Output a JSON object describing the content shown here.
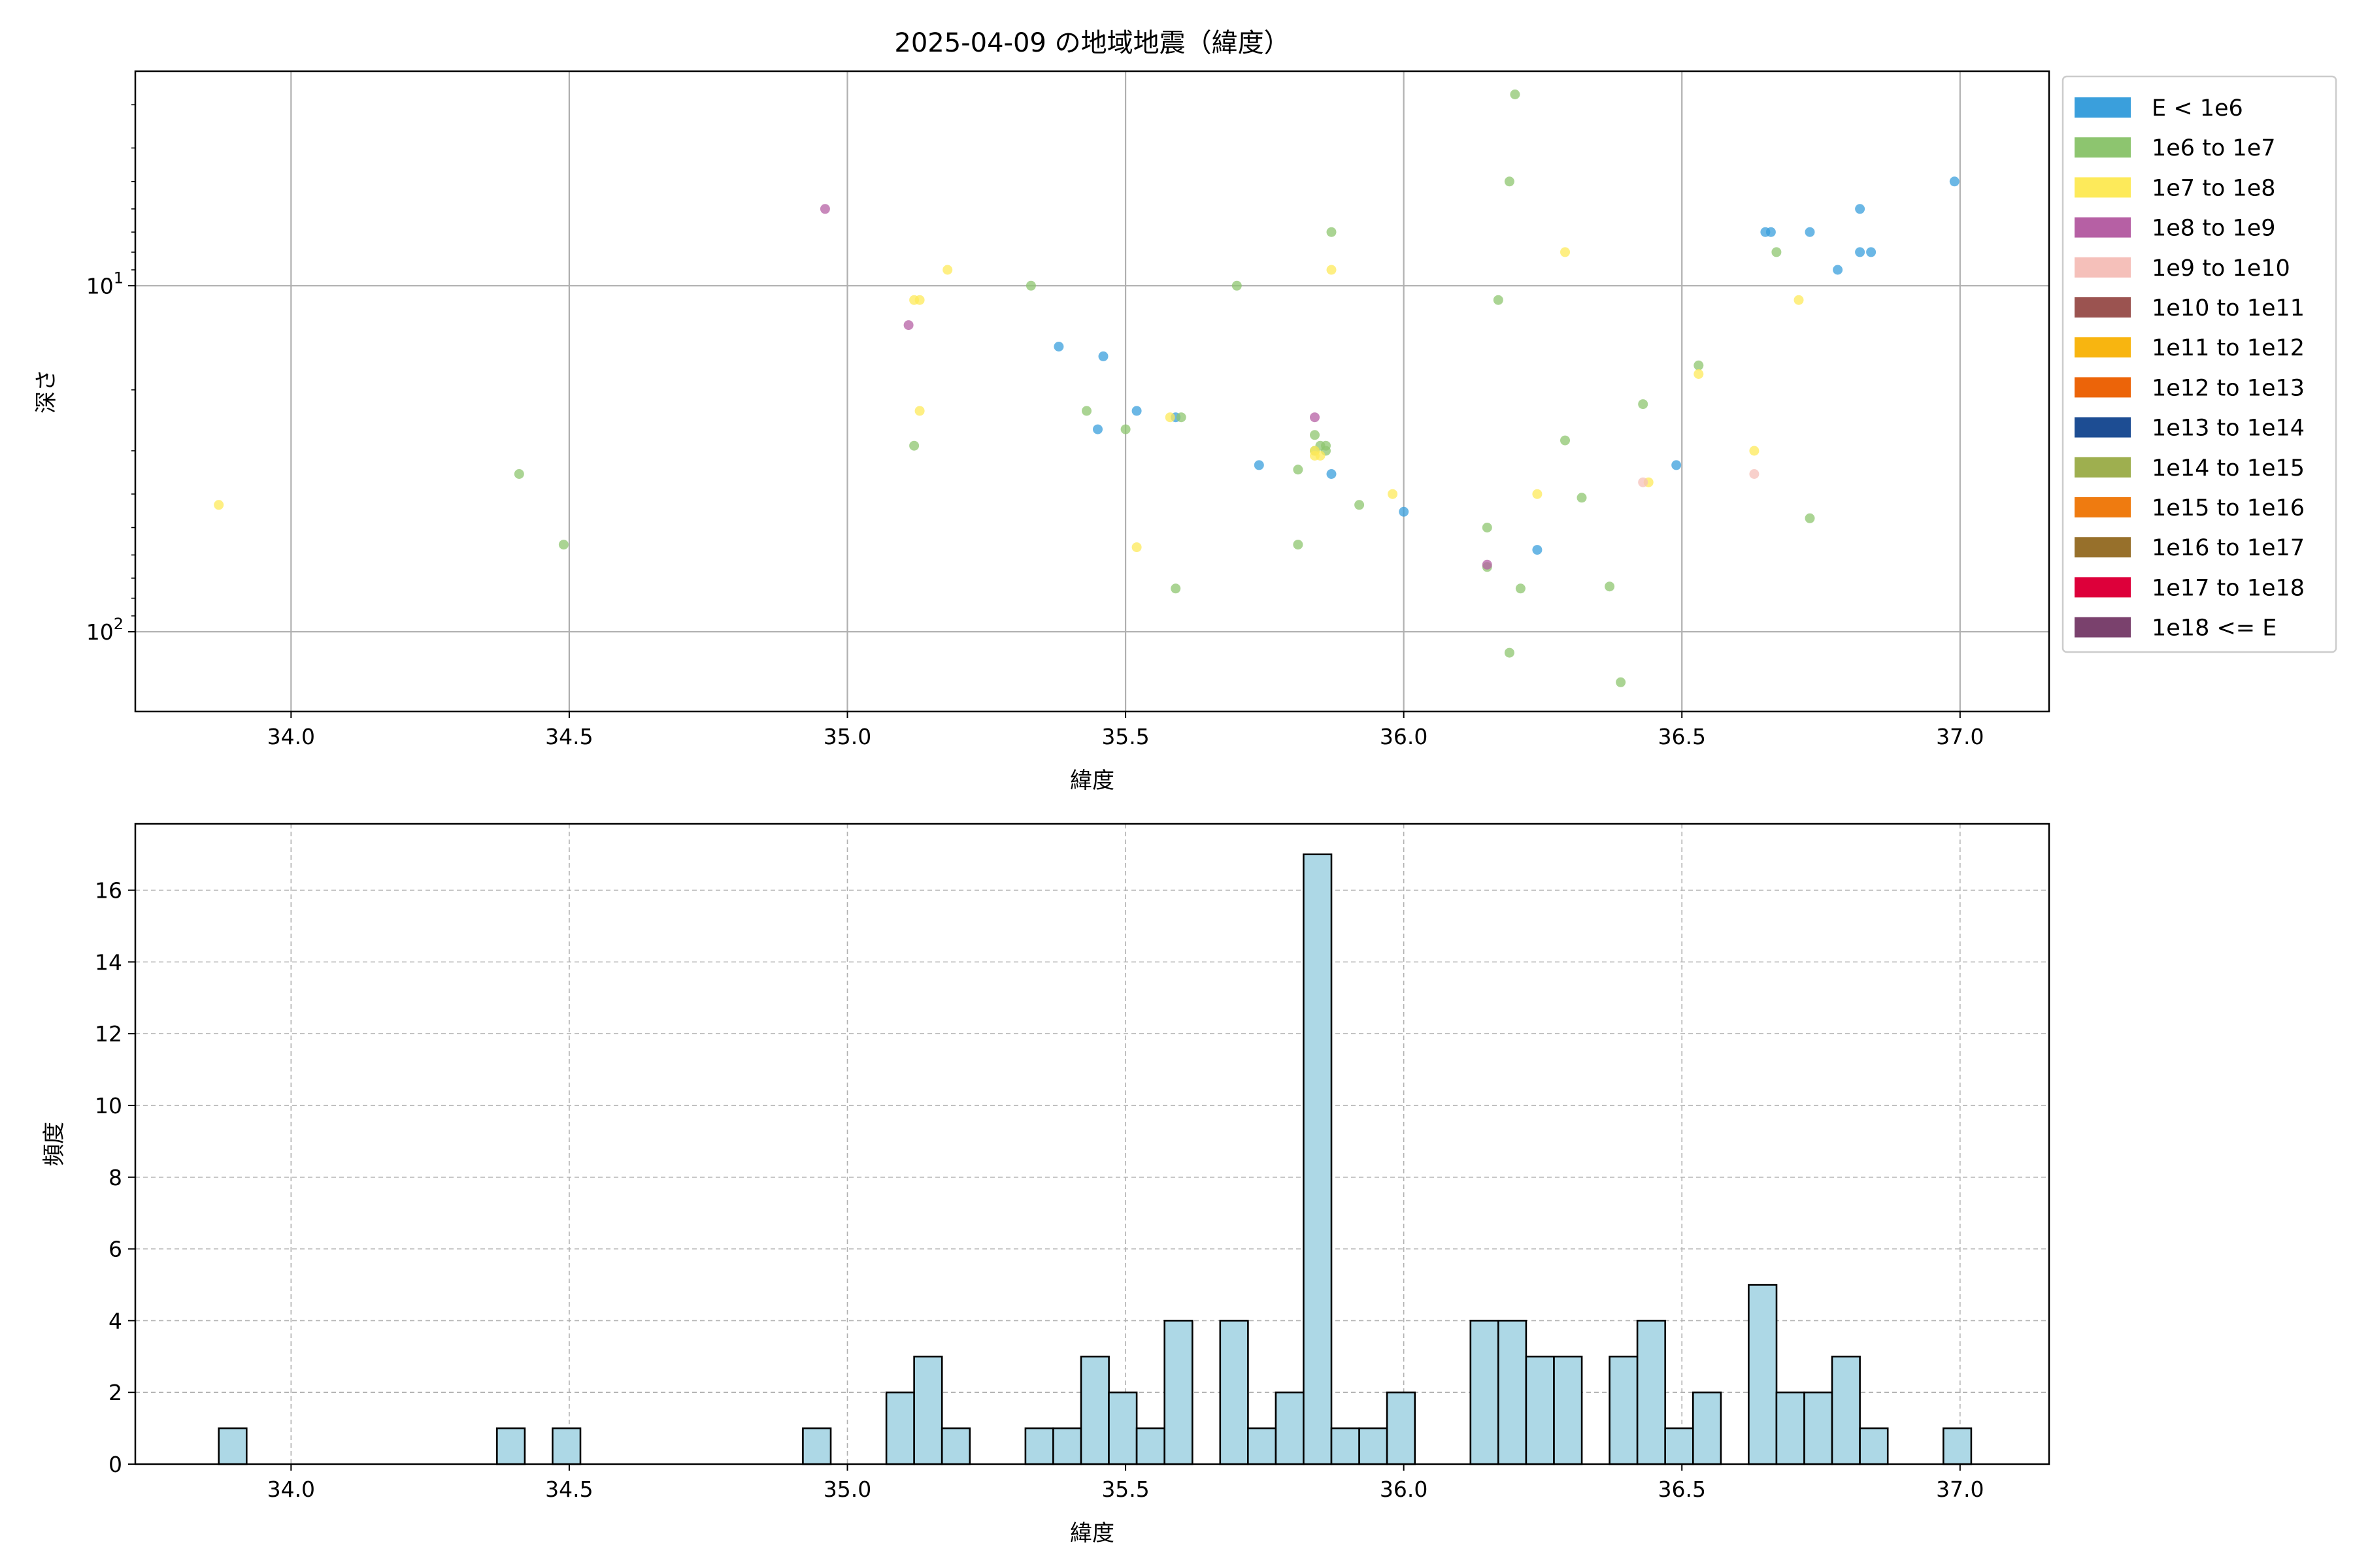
{
  "chart_data": [
    {
      "type": "scatter",
      "title": "2025-04-09 の地域地震（緯度）",
      "xlabel": "緯度",
      "ylabel": "深さ",
      "xlim": [
        33.72,
        37.16
      ],
      "ylim": [
        170,
        2.4
      ],
      "yscale": "log",
      "y_inverted": true,
      "xticks": [
        "34.0",
        "34.5",
        "35.0",
        "35.5",
        "36.0",
        "36.5",
        "37.0"
      ],
      "xtick_values": [
        34.0,
        34.5,
        35.0,
        35.5,
        36.0,
        36.5,
        37.0
      ],
      "ytick_labels": [
        {
          "base": "10",
          "exp": "1",
          "value": 10
        },
        {
          "base": "10",
          "exp": "2",
          "value": 100
        }
      ],
      "grid": true,
      "legend_position": "outside-right",
      "legend": [
        {
          "label": "E < 1e6",
          "color": "#3a9fdc"
        },
        {
          "label": "1e6 to 1e7",
          "color": "#8dc56f"
        },
        {
          "label": "1e7 to 1e8",
          "color": "#fdea5a"
        },
        {
          "label": "1e8 to 1e9",
          "color": "#b660a4"
        },
        {
          "label": "1e9 to 1e10",
          "color": "#f5c0ba"
        },
        {
          "label": "1e10 to 1e11",
          "color": "#9b5350"
        },
        {
          "label": "1e11 to 1e12",
          "color": "#f8b510"
        },
        {
          "label": "1e12 to 1e13",
          "color": "#ec6409"
        },
        {
          "label": "1e13 to 1e14",
          "color": "#1d4d93"
        },
        {
          "label": "1e14 to 1e15",
          "color": "#9eaf4f"
        },
        {
          "label": "1e15 to 1e16",
          "color": "#ef7b10"
        },
        {
          "label": "1e16 to 1e17",
          "color": "#97702b"
        },
        {
          "label": "1e17 to 1e18",
          "color": "#dd003a"
        },
        {
          "label": "1e18 <= E",
          "color": "#7a416d"
        }
      ],
      "series": [
        {
          "name": "E < 1e6",
          "color": "#3a9fdc",
          "points": [
            [
              35.38,
              15
            ],
            [
              35.46,
              16
            ],
            [
              35.45,
              26
            ],
            [
              35.52,
              23
            ],
            [
              35.59,
              24
            ],
            [
              35.74,
              33
            ],
            [
              35.87,
              35
            ],
            [
              36.0,
              45
            ],
            [
              36.24,
              58
            ],
            [
              36.49,
              33
            ],
            [
              36.65,
              7
            ],
            [
              36.66,
              7
            ],
            [
              36.73,
              7
            ],
            [
              36.78,
              9
            ],
            [
              36.82,
              6
            ],
            [
              36.82,
              8
            ],
            [
              36.84,
              8
            ],
            [
              36.99,
              5
            ]
          ]
        },
        {
          "name": "1e6 to 1e7",
          "color": "#8dc56f",
          "points": [
            [
              34.41,
              35
            ],
            [
              34.49,
              56
            ],
            [
              35.12,
              29
            ],
            [
              35.33,
              10
            ],
            [
              35.43,
              23
            ],
            [
              35.5,
              26
            ],
            [
              35.59,
              75
            ],
            [
              35.6,
              24
            ],
            [
              35.7,
              10
            ],
            [
              35.81,
              34
            ],
            [
              35.81,
              56
            ],
            [
              35.84,
              30
            ],
            [
              35.84,
              27
            ],
            [
              35.85,
              29
            ],
            [
              35.86,
              30
            ],
            [
              35.86,
              29
            ],
            [
              35.87,
              7
            ],
            [
              35.92,
              43
            ],
            [
              36.15,
              50
            ],
            [
              36.15,
              65
            ],
            [
              36.17,
              11
            ],
            [
              36.19,
              5
            ],
            [
              36.19,
              115
            ],
            [
              36.2,
              2.8
            ],
            [
              36.21,
              75
            ],
            [
              36.29,
              28
            ],
            [
              36.32,
              41
            ],
            [
              36.37,
              74
            ],
            [
              36.39,
              140
            ],
            [
              36.43,
              22
            ],
            [
              36.53,
              17
            ],
            [
              36.67,
              8
            ],
            [
              36.73,
              47
            ]
          ]
        },
        {
          "name": "1e7 to 1e8",
          "color": "#fdea5a",
          "points": [
            [
              33.87,
              43
            ],
            [
              35.12,
              11
            ],
            [
              35.13,
              11
            ],
            [
              35.13,
              23
            ],
            [
              35.18,
              9
            ],
            [
              35.52,
              57
            ],
            [
              35.58,
              24
            ],
            [
              35.84,
              30
            ],
            [
              35.84,
              31
            ],
            [
              35.85,
              31
            ],
            [
              35.87,
              9
            ],
            [
              35.98,
              40
            ],
            [
              36.24,
              40
            ],
            [
              36.29,
              8
            ],
            [
              36.44,
              37
            ],
            [
              36.53,
              18
            ],
            [
              36.63,
              30
            ],
            [
              36.71,
              11
            ]
          ]
        },
        {
          "name": "1e8 to 1e9",
          "color": "#b660a4",
          "points": [
            [
              34.96,
              6
            ],
            [
              35.11,
              13
            ],
            [
              35.84,
              24
            ],
            [
              36.15,
              64
            ]
          ]
        },
        {
          "name": "1e9 to 1e10",
          "color": "#f5c0ba",
          "points": [
            [
              36.43,
              37
            ],
            [
              36.63,
              35
            ]
          ]
        }
      ]
    },
    {
      "type": "bar",
      "subtype": "histogram",
      "xlabel": "緯度",
      "ylabel": "頻度",
      "xlim": [
        33.72,
        37.16
      ],
      "ylim": [
        0,
        17.85
      ],
      "xticks": [
        "34.0",
        "34.5",
        "35.0",
        "35.5",
        "36.0",
        "36.5",
        "37.0"
      ],
      "xtick_values": [
        34.0,
        34.5,
        35.0,
        35.5,
        36.0,
        36.5,
        37.0
      ],
      "yticks": [
        "0",
        "2",
        "4",
        "6",
        "8",
        "10",
        "12",
        "14",
        "16"
      ],
      "ytick_values": [
        0,
        2,
        4,
        6,
        8,
        10,
        12,
        14,
        16
      ],
      "grid": true,
      "bar_color": "#add8e6",
      "edge_color": "#000000",
      "bins": [
        {
          "start": 33.87,
          "end": 33.92,
          "count": 1
        },
        {
          "start": 34.37,
          "end": 34.42,
          "count": 1
        },
        {
          "start": 34.47,
          "end": 34.52,
          "count": 1
        },
        {
          "start": 34.92,
          "end": 34.97,
          "count": 1
        },
        {
          "start": 35.07,
          "end": 35.12,
          "count": 2
        },
        {
          "start": 35.12,
          "end": 35.17,
          "count": 3
        },
        {
          "start": 35.17,
          "end": 35.22,
          "count": 1
        },
        {
          "start": 35.32,
          "end": 35.37,
          "count": 1
        },
        {
          "start": 35.37,
          "end": 35.42,
          "count": 1
        },
        {
          "start": 35.42,
          "end": 35.47,
          "count": 3
        },
        {
          "start": 35.47,
          "end": 35.52,
          "count": 2
        },
        {
          "start": 35.52,
          "end": 35.57,
          "count": 1
        },
        {
          "start": 35.57,
          "end": 35.62,
          "count": 4
        },
        {
          "start": 35.67,
          "end": 35.72,
          "count": 4
        },
        {
          "start": 35.72,
          "end": 35.77,
          "count": 1
        },
        {
          "start": 35.77,
          "end": 35.82,
          "count": 2
        },
        {
          "start": 35.82,
          "end": 35.87,
          "count": 17
        },
        {
          "start": 35.87,
          "end": 35.92,
          "count": 1
        },
        {
          "start": 35.92,
          "end": 35.97,
          "count": 1
        },
        {
          "start": 35.97,
          "end": 36.02,
          "count": 2
        },
        {
          "start": 36.12,
          "end": 36.17,
          "count": 4
        },
        {
          "start": 36.17,
          "end": 36.22,
          "count": 4
        },
        {
          "start": 36.22,
          "end": 36.27,
          "count": 3
        },
        {
          "start": 36.27,
          "end": 36.32,
          "count": 3
        },
        {
          "start": 36.37,
          "end": 36.42,
          "count": 3
        },
        {
          "start": 36.42,
          "end": 36.47,
          "count": 4
        },
        {
          "start": 36.47,
          "end": 36.52,
          "count": 1
        },
        {
          "start": 36.52,
          "end": 36.57,
          "count": 2
        },
        {
          "start": 36.62,
          "end": 36.67,
          "count": 5
        },
        {
          "start": 36.67,
          "end": 36.72,
          "count": 2
        },
        {
          "start": 36.72,
          "end": 36.77,
          "count": 2
        },
        {
          "start": 36.77,
          "end": 36.82,
          "count": 3
        },
        {
          "start": 36.82,
          "end": 36.87,
          "count": 1
        },
        {
          "start": 36.97,
          "end": 37.02,
          "count": 1
        }
      ]
    }
  ]
}
